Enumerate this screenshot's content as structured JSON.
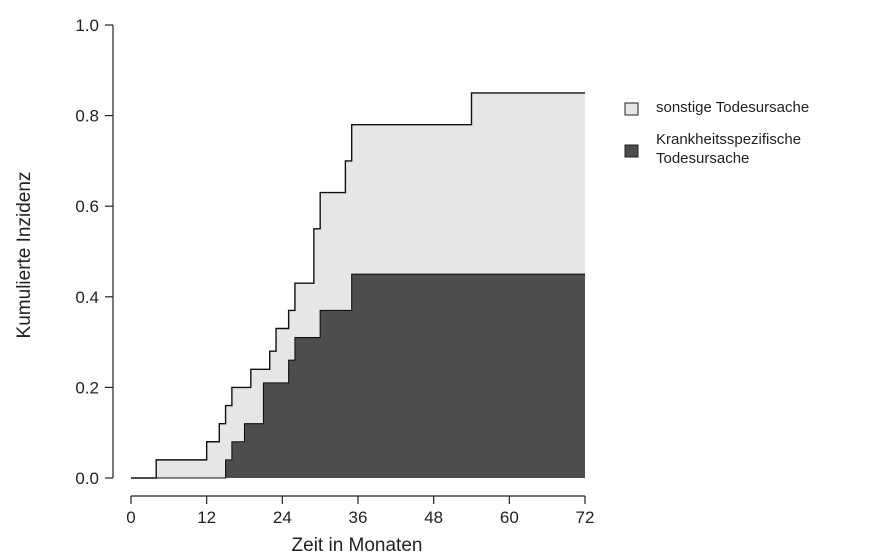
{
  "chart_data": {
    "type": "area",
    "stacked": true,
    "step": true,
    "title": "",
    "xlabel": "Zeit in Monaten",
    "ylabel": "Kumulierte Inzidenz",
    "xlim": [
      0,
      72
    ],
    "ylim": [
      0,
      1
    ],
    "xticks": [
      "0",
      "12",
      "24",
      "36",
      "48",
      "60",
      "72"
    ],
    "yticks": [
      "0.0",
      "0.2",
      "0.4",
      "0.6",
      "0.8",
      "1.0"
    ],
    "grid": false,
    "legend_position": "right",
    "series": [
      {
        "name": "Krankheitsspezifische Todesursache",
        "legend_lines": [
          "Krankheitsspezifische",
          "Todesursache"
        ],
        "color": "#4d4d4d",
        "x": [
          0,
          15,
          16,
          18,
          21,
          25,
          26,
          30,
          35,
          72
        ],
        "values": [
          0.0,
          0.04,
          0.08,
          0.12,
          0.21,
          0.26,
          0.31,
          0.37,
          0.45,
          0.45
        ]
      },
      {
        "name": "sonstige Todesursache",
        "legend_lines": [
          "sonstige Todesursache"
        ],
        "color": "#e6e6e6",
        "x": [
          0,
          4,
          12,
          14,
          15,
          16,
          19,
          22,
          23,
          25,
          26,
          29,
          30,
          33,
          34,
          35,
          54,
          72
        ],
        "cumulative_values": [
          0.0,
          0.04,
          0.08,
          0.12,
          0.16,
          0.2,
          0.24,
          0.28,
          0.33,
          0.37,
          0.43,
          0.55,
          0.63,
          0.63,
          0.7,
          0.78,
          0.85,
          0.85
        ]
      }
    ]
  }
}
